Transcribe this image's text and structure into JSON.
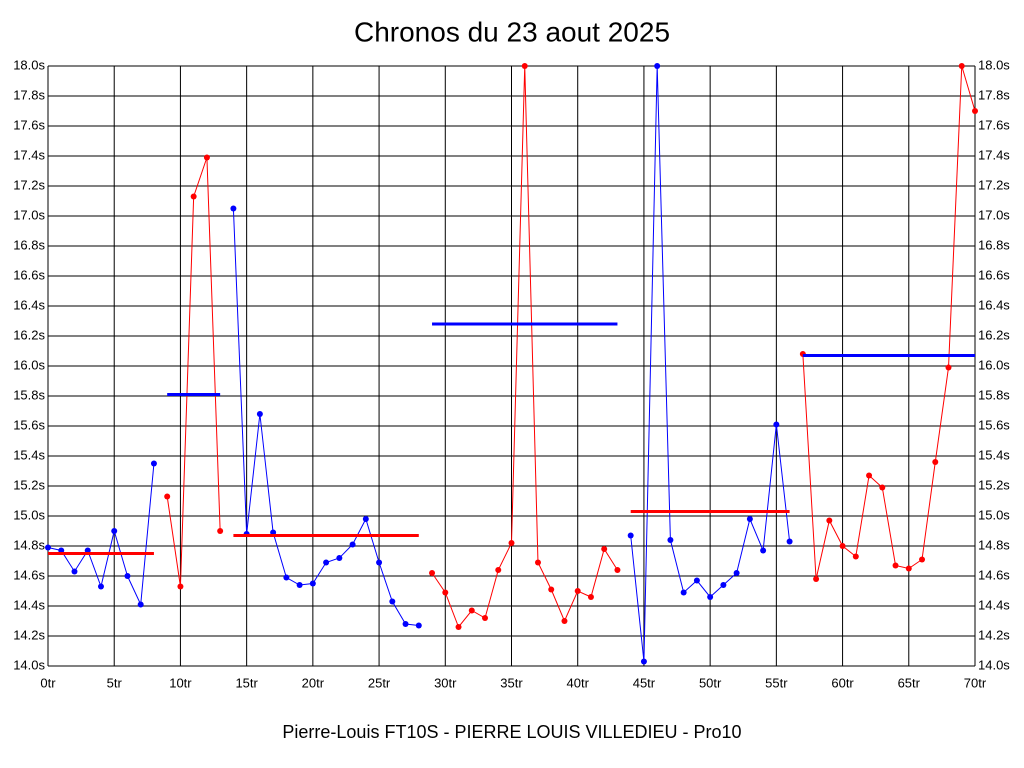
{
  "chart_data": {
    "type": "line",
    "title": "Chronos du 23 aout 2025",
    "x_label": "Pierre-Louis FT10S - PIERRE LOUIS VILLEDIEU - Pro10",
    "xlim": [
      0,
      70
    ],
    "xticks": [
      {
        "value": 0,
        "label": "0tr"
      },
      {
        "value": 5,
        "label": "5tr"
      },
      {
        "value": 10,
        "label": "10tr"
      },
      {
        "value": 15,
        "label": "15tr"
      },
      {
        "value": 20,
        "label": "20tr"
      },
      {
        "value": 25,
        "label": "25tr"
      },
      {
        "value": 30,
        "label": "30tr"
      },
      {
        "value": 35,
        "label": "35tr"
      },
      {
        "value": 40,
        "label": "40tr"
      },
      {
        "value": 45,
        "label": "45tr"
      },
      {
        "value": 50,
        "label": "50tr"
      },
      {
        "value": 55,
        "label": "55tr"
      },
      {
        "value": 60,
        "label": "60tr"
      },
      {
        "value": 65,
        "label": "65tr"
      },
      {
        "value": 70,
        "label": "70tr"
      }
    ],
    "ylim": [
      14,
      18
    ],
    "yticks": [
      {
        "value": 14,
        "label": "14.0s"
      },
      {
        "value": 14.2,
        "label": "14.2s"
      },
      {
        "value": 14.4,
        "label": "14.4s"
      },
      {
        "value": 14.6,
        "label": "14.6s"
      },
      {
        "value": 14.8,
        "label": "14.8s"
      },
      {
        "value": 15,
        "label": "15.0s"
      },
      {
        "value": 15.2,
        "label": "15.2s"
      },
      {
        "value": 15.4,
        "label": "15.4s"
      },
      {
        "value": 15.6,
        "label": "15.6s"
      },
      {
        "value": 15.8,
        "label": "15.8s"
      },
      {
        "value": 16,
        "label": "16.0s"
      },
      {
        "value": 16.2,
        "label": "16.2s"
      },
      {
        "value": 16.4,
        "label": "16.4s"
      },
      {
        "value": 16.6,
        "label": "16.6s"
      },
      {
        "value": 16.8,
        "label": "16.8s"
      },
      {
        "value": 17,
        "label": "17.0s"
      },
      {
        "value": 17.2,
        "label": "17.2s"
      },
      {
        "value": 17.4,
        "label": "17.4s"
      },
      {
        "value": 17.6,
        "label": "17.6s"
      },
      {
        "value": 17.8,
        "label": "17.8s"
      },
      {
        "value": 18,
        "label": "18.0s"
      }
    ],
    "grid": true,
    "series": [
      {
        "color": "#0000ff",
        "x": [
          0,
          1,
          2,
          3,
          4,
          5,
          6,
          7,
          8
        ],
        "values": [
          14.79,
          14.77,
          14.63,
          14.77,
          14.53,
          14.9,
          14.6,
          14.41,
          15.35
        ]
      },
      {
        "color": "#ff0000",
        "x": [
          9,
          10,
          11,
          12,
          13
        ],
        "values": [
          15.13,
          14.53,
          17.13,
          17.39,
          14.9
        ]
      },
      {
        "color": "#0000ff",
        "x": [
          14,
          15,
          16,
          17,
          18,
          19,
          20,
          21,
          22,
          23,
          24,
          25,
          26,
          27,
          28
        ],
        "values": [
          17.05,
          14.88,
          15.68,
          14.89,
          14.59,
          14.54,
          14.55,
          14.69,
          14.72,
          14.81,
          14.98,
          14.69,
          14.43,
          14.28,
          14.27
        ]
      },
      {
        "color": "#ff0000",
        "x": [
          29,
          30,
          31,
          32,
          33,
          34,
          35,
          36,
          37,
          38,
          39,
          40,
          41,
          42,
          43
        ],
        "values": [
          14.62,
          14.49,
          14.26,
          14.37,
          14.32,
          14.64,
          14.82,
          18.0,
          14.69,
          14.51,
          14.3,
          14.5,
          14.46,
          14.78,
          14.64
        ]
      },
      {
        "color": "#0000ff",
        "x": [
          44,
          45,
          46,
          47,
          48,
          49,
          50,
          51,
          52,
          53,
          54,
          55,
          56
        ],
        "values": [
          14.87,
          14.03,
          18.0,
          14.84,
          14.49,
          14.57,
          14.46,
          14.54,
          14.62,
          14.98,
          14.77,
          15.61,
          14.83
        ]
      },
      {
        "color": "#ff0000",
        "x": [
          57,
          58,
          59,
          60,
          61,
          62,
          63,
          64,
          65,
          66,
          67,
          68,
          69,
          70
        ],
        "values": [
          16.08,
          14.58,
          14.97,
          14.8,
          14.73,
          15.27,
          15.19,
          14.67,
          14.65,
          14.71,
          15.36,
          15.99,
          18.0,
          17.7
        ]
      }
    ],
    "averages": [
      {
        "color": "#ff0000",
        "from": 0,
        "to": 8,
        "value": 14.75
      },
      {
        "color": "#0000ff",
        "from": 9,
        "to": 13,
        "value": 15.81
      },
      {
        "color": "#ff0000",
        "from": 14,
        "to": 28,
        "value": 14.87
      },
      {
        "color": "#0000ff",
        "from": 29,
        "to": 43,
        "value": 16.28
      },
      {
        "color": "#ff0000",
        "from": 44,
        "to": 56,
        "value": 15.03
      },
      {
        "color": "#0000ff",
        "from": 57,
        "to": 70,
        "value": 16.07
      }
    ]
  }
}
